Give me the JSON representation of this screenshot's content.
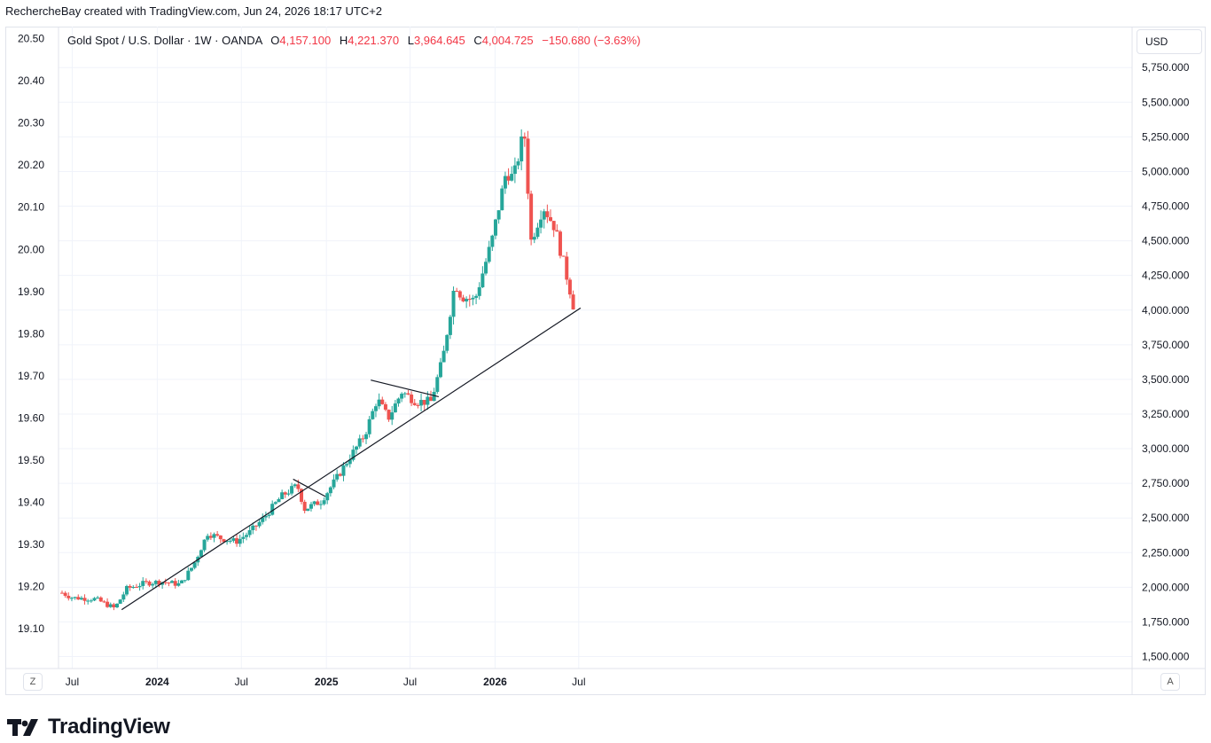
{
  "header": {
    "attribution": "RechercheBay created with TradingView.com, Jun 24, 2026 18:17 UTC+2"
  },
  "legend": {
    "symbol": "Gold Spot / U.S. Dollar · 1W · OANDA",
    "o_label": "O",
    "o_value": "4,157.100",
    "h_label": "H",
    "h_value": "4,221.370",
    "l_label": "L",
    "l_value": "3,964.645",
    "c_label": "C",
    "c_value": "4,004.725",
    "change": "−150.680 (−3.63%)"
  },
  "currency_button": "USD",
  "z_button": "Z",
  "a_button": "A",
  "brand": {
    "name": "TradingView",
    "logo": "tradingview-logo-icon"
  },
  "colors": {
    "up": "#26a69a",
    "down": "#ef5350",
    "grid": "#f0f3fa",
    "trendline": "#131722"
  },
  "chart_data": {
    "type": "candlestick",
    "interval": "1W",
    "right_axis_ticks": [
      1500,
      1750,
      2000,
      2250,
      2500,
      2750,
      3000,
      3250,
      3500,
      3750,
      4000,
      4250,
      4500,
      4750,
      5000,
      5250,
      5500,
      5750
    ],
    "right_axis_labels": [
      "1,500.000",
      "1,750.000",
      "2,000.000",
      "2,250.000",
      "2,500.000",
      "2,750.000",
      "3,000.000",
      "3,250.000",
      "3,500.000",
      "3,750.000",
      "4,000.000",
      "4,250.000",
      "4,500.000",
      "4,750.000",
      "5,000.000",
      "5,250.000",
      "5,500.000",
      "5,750.000"
    ],
    "left_axis_labels": [
      "20.50",
      "20.40",
      "20.30",
      "20.20",
      "20.10",
      "20.00",
      "19.90",
      "19.80",
      "19.70",
      "19.60",
      "19.50",
      "19.40",
      "19.30",
      "19.20",
      "19.10"
    ],
    "x_labels": [
      {
        "label": "Jul",
        "date": "2023-07-01",
        "bold": false
      },
      {
        "label": "2024",
        "date": "2024-01-01",
        "bold": true
      },
      {
        "label": "Jul",
        "date": "2024-07-01",
        "bold": false
      },
      {
        "label": "2025",
        "date": "2025-01-01",
        "bold": true
      },
      {
        "label": "Jul",
        "date": "2025-07-01",
        "bold": false
      },
      {
        "label": "2026",
        "date": "2026-01-01",
        "bold": true
      },
      {
        "label": "Jul",
        "date": "2026-07-01",
        "bold": false
      }
    ],
    "anchors": [
      {
        "date": "2023-06-09",
        "price": 1960
      },
      {
        "date": "2023-07-01",
        "price": 1925
      },
      {
        "date": "2023-08-20",
        "price": 1915
      },
      {
        "date": "2023-10-01",
        "price": 1848
      },
      {
        "date": "2023-10-27",
        "price": 1990
      },
      {
        "date": "2023-12-05",
        "price": 2030
      },
      {
        "date": "2024-01-10",
        "price": 2040
      },
      {
        "date": "2024-02-20",
        "price": 2020
      },
      {
        "date": "2024-03-20",
        "price": 2165
      },
      {
        "date": "2024-04-19",
        "price": 2390
      },
      {
        "date": "2024-05-20",
        "price": 2350
      },
      {
        "date": "2024-06-20",
        "price": 2330
      },
      {
        "date": "2024-07-20",
        "price": 2400
      },
      {
        "date": "2024-08-20",
        "price": 2505
      },
      {
        "date": "2024-09-25",
        "price": 2655
      },
      {
        "date": "2024-10-30",
        "price": 2735
      },
      {
        "date": "2024-11-15",
        "price": 2565
      },
      {
        "date": "2024-12-20",
        "price": 2620
      },
      {
        "date": "2025-01-20",
        "price": 2770
      },
      {
        "date": "2025-02-20",
        "price": 2935
      },
      {
        "date": "2025-03-25",
        "price": 3100
      },
      {
        "date": "2025-04-21",
        "price": 3360
      },
      {
        "date": "2025-05-15",
        "price": 3220
      },
      {
        "date": "2025-06-13",
        "price": 3410
      },
      {
        "date": "2025-07-15",
        "price": 3340
      },
      {
        "date": "2025-08-15",
        "price": 3340
      },
      {
        "date": "2025-09-10",
        "price": 3650
      },
      {
        "date": "2025-10-06",
        "price": 4200
      },
      {
        "date": "2025-10-20",
        "price": 4100
      },
      {
        "date": "2025-11-18",
        "price": 4070
      },
      {
        "date": "2025-12-25",
        "price": 4500
      },
      {
        "date": "2026-01-25",
        "price": 5000
      },
      {
        "date": "2026-02-10",
        "price": 4950
      },
      {
        "date": "2026-03-05",
        "price": 5300
      },
      {
        "date": "2026-03-20",
        "price": 4500
      },
      {
        "date": "2026-04-15",
        "price": 4750
      },
      {
        "date": "2026-05-10",
        "price": 4600
      },
      {
        "date": "2026-06-01",
        "price": 4300
      },
      {
        "date": "2026-06-22",
        "price": 4005
      }
    ],
    "trendlines": [
      {
        "from": {
          "date": "2023-10-16",
          "price": 1838
        },
        "to": {
          "date": "2026-07-05",
          "price": 4015
        }
      },
      {
        "from": {
          "date": "2024-10-21",
          "price": 2780
        },
        "to": {
          "date": "2024-12-30",
          "price": 2655
        }
      },
      {
        "from": {
          "date": "2025-04-07",
          "price": 3495
        },
        "to": {
          "date": "2025-09-01",
          "price": 3375
        }
      }
    ]
  }
}
